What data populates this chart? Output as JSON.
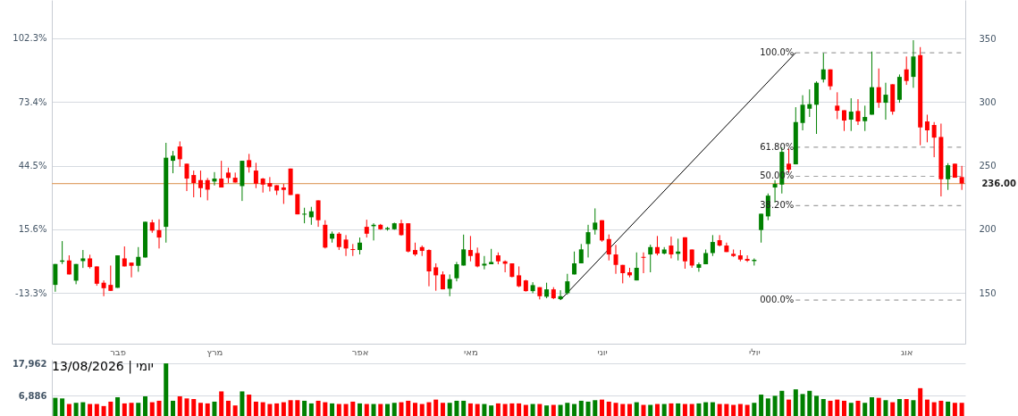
{
  "chart_data": [
    {
      "type": "candlestick",
      "categories": [
        null,
        null,
        null,
        null,
        null,
        null,
        null,
        null,
        null,
        "פבר",
        null,
        null,
        null,
        null,
        null,
        null,
        null,
        null,
        null,
        null,
        null,
        null,
        null,
        "מרץ",
        null,
        null,
        null,
        null,
        null,
        null,
        null,
        null,
        null,
        null,
        null,
        null,
        null,
        null,
        null,
        null,
        null,
        null,
        null,
        null,
        "אפר",
        null,
        null,
        null,
        null,
        null,
        null,
        null,
        null,
        null,
        null,
        null,
        null,
        null,
        null,
        null,
        "מאי",
        null,
        null,
        null,
        null,
        null,
        null,
        null,
        null,
        null,
        null,
        null,
        null,
        null,
        null,
        null,
        null,
        null,
        null,
        "יוני",
        null,
        null,
        null,
        null,
        null,
        null,
        null,
        null,
        null,
        null,
        null,
        null,
        null,
        null,
        null,
        null,
        null,
        null,
        null,
        null,
        null,
        "יולי",
        null,
        null,
        null,
        null,
        null,
        null,
        null,
        null,
        null,
        null,
        null,
        null,
        null,
        null,
        null,
        null,
        null,
        null,
        null,
        null,
        null,
        "אוג",
        null,
        null,
        null,
        null,
        null,
        null,
        null,
        null
      ],
      "ylim": [
        110.2,
        380.2
      ],
      "yticks": [
        150,
        200,
        250,
        300,
        350
      ],
      "y2lim": [
        -36.3,
        119.7
      ],
      "y2ticks": [
        {
          "value": -13.3,
          "label": "-13.3%"
        },
        {
          "value": 15.6,
          "label": "15.6%"
        },
        {
          "value": 44.5,
          "label": "44.5%"
        },
        {
          "value": 73.4,
          "label": "73.4%"
        },
        {
          "value": 102.3,
          "label": "102.3%"
        }
      ],
      "grid": "y",
      "ohlc": [
        [
          156.4,
          172.8,
          151.0,
          172.8
        ],
        [
          174.6,
          190.8,
          172.8,
          175.6
        ],
        [
          175.6,
          179.6,
          164.6,
          164.6
        ],
        [
          159.7,
          172.8,
          156.9,
          172.8
        ],
        [
          175.1,
          183.8,
          169.7,
          177.2
        ],
        [
          177.2,
          180.1,
          169.3,
          170.4
        ],
        [
          170.9,
          170.9,
          155.7,
          157.3
        ],
        [
          158.1,
          159.9,
          147.5,
          153.8
        ],
        [
          156.4,
          171.6,
          151.7,
          151.7
        ],
        [
          154.1,
          179.6,
          154.1,
          179.6
        ],
        [
          177.2,
          186.6,
          170.9,
          170.9
        ],
        [
          173.9,
          173.9,
          162.3,
          171.4
        ],
        [
          171.4,
          186.1,
          166.7,
          178.4
        ],
        [
          177.9,
          206.0,
          177.9,
          206.0
        ],
        [
          205.5,
          207.6,
          197.3,
          199.0
        ],
        [
          199.4,
          207.9,
          185.0,
          193.6
        ],
        [
          202.0,
          268.0,
          189.6,
          256.3
        ],
        [
          253.9,
          261.6,
          244.1,
          257.9
        ],
        [
          265.1,
          269.1,
          249.2,
          255.1
        ],
        [
          251.6,
          251.6,
          230.1,
          239.9
        ],
        [
          242.7,
          246.2,
          225.2,
          236.4
        ],
        [
          238.7,
          246.2,
          225.2,
          232.4
        ],
        [
          238.7,
          240.4,
          222.8,
          231.2
        ],
        [
          237.6,
          245.0,
          234.5,
          239.9
        ],
        [
          239.9,
          253.9,
          232.9,
          232.9
        ],
        [
          244.6,
          248.5,
          236.4,
          240.4
        ],
        [
          240.6,
          244.6,
          236.8,
          236.8
        ],
        [
          234.0,
          253.9,
          222.3,
          253.9
        ],
        [
          254.4,
          259.3,
          244.6,
          248.8
        ],
        [
          246.2,
          252.3,
          232.4,
          235.9
        ],
        [
          239.9,
          240.4,
          228.9,
          235.2
        ],
        [
          236.4,
          241.1,
          229.8,
          233.6
        ],
        [
          234.7,
          234.7,
          227.0,
          230.5
        ],
        [
          232.9,
          235.7,
          220.0,
          231.0
        ],
        [
          247.8,
          247.8,
          227.0,
          227.0
        ],
        [
          227.7,
          227.7,
          211.8,
          211.8
        ],
        [
          211.6,
          217.0,
          204.8,
          212.3
        ],
        [
          209.5,
          217.7,
          203.6,
          214.2
        ],
        [
          222.8,
          222.8,
          202.0,
          207.2
        ],
        [
          203.6,
          207.2,
          185.0,
          185.7
        ],
        [
          192.7,
          198.3,
          189.6,
          196.6
        ],
        [
          196.6,
          197.8,
          183.8,
          186.1
        ],
        [
          192.0,
          195.5,
          179.1,
          185.0
        ],
        [
          184.5,
          188.5,
          179.1,
          183.8
        ],
        [
          183.8,
          193.6,
          180.3,
          189.6
        ],
        [
          202.0,
          207.6,
          193.6,
          196.6
        ],
        [
          202.5,
          204.8,
          191.3,
          203.6
        ],
        [
          203.6,
          204.3,
          199.7,
          200.1
        ],
        [
          200.1,
          202.0,
          199.0,
          201.1
        ],
        [
          200.1,
          205.3,
          199.7,
          204.8
        ],
        [
          204.8,
          207.6,
          195.0,
          195.5
        ],
        [
          204.8,
          204.8,
          181.9,
          182.6
        ],
        [
          183.8,
          189.6,
          179.1,
          180.3
        ],
        [
          186.1,
          187.3,
          179.1,
          183.1
        ],
        [
          183.8,
          184.3,
          155.3,
          167.0
        ],
        [
          170.2,
          173.3,
          151.8,
          163.9
        ],
        [
          164.6,
          167.0,
          152.9,
          152.9
        ],
        [
          153.4,
          164.6,
          147.5,
          160.9
        ],
        [
          161.6,
          174.4,
          159.2,
          172.6
        ],
        [
          171.6,
          195.9,
          171.6,
          184.3
        ],
        [
          183.8,
          194.8,
          174.9,
          179.1
        ],
        [
          181.4,
          185.7,
          170.2,
          170.9
        ],
        [
          171.6,
          179.1,
          168.6,
          173.0
        ],
        [
          172.6,
          184.7,
          172.6,
          174.4
        ],
        [
          179.6,
          181.9,
          172.6,
          174.9
        ],
        [
          174.9,
          175.6,
          166.3,
          173.0
        ],
        [
          173.3,
          173.3,
          162.3,
          162.7
        ],
        [
          163.9,
          170.9,
          154.6,
          155.3
        ],
        [
          159.9,
          160.4,
          151.1,
          151.5
        ],
        [
          151.5,
          158.5,
          149.9,
          156.2
        ],
        [
          154.6,
          154.6,
          145.0,
          147.5
        ],
        [
          147.1,
          158.1,
          145.9,
          152.9
        ],
        [
          152.9,
          154.6,
          145.2,
          145.9
        ],
        [
          145.2,
          152.2,
          144.5,
          147.5
        ],
        [
          149.9,
          165.1,
          148.7,
          159.2
        ],
        [
          164.6,
          182.6,
          164.6,
          173.3
        ],
        [
          173.3,
          188.5,
          173.3,
          184.3
        ],
        [
          188.5,
          203.6,
          177.9,
          197.8
        ],
        [
          199.7,
          216.5,
          195.9,
          205.3
        ],
        [
          207.2,
          207.2,
          190.3,
          191.3
        ],
        [
          192.4,
          196.0,
          175.6,
          180.3
        ],
        [
          180.3,
          187.8,
          165.1,
          172.1
        ],
        [
          172.1,
          172.1,
          157.6,
          165.6
        ],
        [
          166.3,
          169.8,
          162.3,
          163.9
        ],
        [
          159.9,
          181.9,
          159.9,
          169.8
        ],
        [
          178.4,
          181.9,
          165.6,
          177.7
        ],
        [
          180.3,
          188.0,
          166.3,
          186.1
        ],
        [
          186.1,
          194.8,
          179.6,
          181.0
        ],
        [
          181.0,
          186.1,
          180.3,
          184.2
        ],
        [
          187.3,
          194.3,
          177.2,
          180.3
        ],
        [
          180.8,
          192.7,
          175.6,
          182.6
        ],
        [
          193.8,
          193.8,
          169.1,
          174.9
        ],
        [
          184.2,
          184.2,
          169.8,
          171.6
        ],
        [
          169.8,
          174.0,
          166.7,
          172.6
        ],
        [
          172.6,
          184.2,
          172.6,
          181.4
        ],
        [
          181.4,
          195.5,
          179.1,
          190.1
        ],
        [
          191.5,
          195.5,
          186.6,
          187.3
        ],
        [
          187.3,
          189.6,
          182.2,
          182.2
        ],
        [
          180.8,
          184.2,
          178.4,
          179.1
        ],
        [
          179.6,
          183.8,
          174.9,
          176.3
        ],
        [
          176.8,
          179.6,
          174.4,
          175.4
        ],
        [
          175.1,
          177.2,
          171.6,
          176.1
        ],
        [
          199.5,
          212.3,
          189.6,
          212.3
        ],
        [
          210.2,
          228.2,
          207.2,
          226.5
        ],
        [
          232.9,
          238.7,
          221.2,
          235.7
        ],
        [
          235.2,
          264.4,
          228.2,
          260.9
        ],
        [
          251.6,
          263.3,
          244.6,
          246.9
        ],
        [
          251.1,
          296.0,
          251.1,
          284.3
        ],
        [
          283.6,
          305.4,
          277.8,
          297.9
        ],
        [
          294.8,
          310.0,
          288.3,
          298.4
        ],
        [
          297.9,
          316.3,
          275.0,
          315.2
        ],
        [
          317.7,
          338.5,
          315.4,
          325.7
        ],
        [
          325.7,
          325.7,
          309.6,
          312.4
        ],
        [
          297.2,
          307.7,
          286.6,
          293.2
        ],
        [
          293.6,
          293.6,
          277.3,
          285.5
        ],
        [
          286.2,
          303.0,
          277.3,
          292.5
        ],
        [
          293.0,
          302.3,
          282.0,
          284.8
        ],
        [
          285.0,
          297.2,
          277.3,
          288.3
        ],
        [
          290.1,
          339.7,
          290.1,
          311.7
        ],
        [
          311.7,
          326.4,
          295.5,
          299.5
        ],
        [
          299.5,
          315.2,
          286.2,
          305.8
        ],
        [
          314.0,
          314.0,
          290.1,
          292.5
        ],
        [
          301.8,
          321.7,
          299.5,
          319.8
        ],
        [
          325.7,
          335.8,
          313.5,
          316.6
        ],
        [
          319.8,
          348.6,
          311.2,
          335.8
        ],
        [
          336.9,
          343.2,
          266.1,
          280.1
        ],
        [
          284.8,
          290.1,
          268.4,
          277.8
        ],
        [
          282.0,
          284.3,
          256.7,
          272.1
        ],
        [
          272.6,
          283.1,
          225.9,
          239.4
        ],
        [
          239.4,
          252.0,
          231.0,
          250.4
        ],
        [
          251.6,
          251.6,
          240.6,
          240.6
        ],
        [
          241.1,
          249.9,
          231.0,
          236.0
        ]
      ],
      "colors": [
        "#008000",
        "#008000",
        "#ff0000",
        "#008000",
        "#008000",
        "#ff0000",
        "#ff0000",
        "#ff0000",
        "#ff0000",
        "#008000",
        "#ff0000",
        "#ff0000",
        "#008000",
        "#008000",
        "#ff0000",
        "#ff0000",
        "#008000",
        "#008000",
        "#ff0000",
        "#ff0000",
        "#ff0000",
        "#ff0000",
        "#ff0000",
        "#008000",
        "#ff0000",
        "#ff0000",
        "#ff0000",
        "#008000",
        "#ff0000",
        "#ff0000",
        "#ff0000",
        "#ff0000",
        "#ff0000",
        "#ff0000",
        "#ff0000",
        "#ff0000",
        "#008000",
        "#008000",
        "#ff0000",
        "#ff0000",
        "#008000",
        "#ff0000",
        "#ff0000",
        "#ff0000",
        "#008000",
        "#ff0000",
        "#008000",
        "#ff0000",
        "#008000",
        "#008000",
        "#ff0000",
        "#ff0000",
        "#ff0000",
        "#ff0000",
        "#ff0000",
        "#ff0000",
        "#ff0000",
        "#008000",
        "#008000",
        "#008000",
        "#ff0000",
        "#ff0000",
        "#008000",
        "#008000",
        "#ff0000",
        "#ff0000",
        "#ff0000",
        "#ff0000",
        "#ff0000",
        "#008000",
        "#ff0000",
        "#008000",
        "#ff0000",
        "#008000",
        "#008000",
        "#008000",
        "#008000",
        "#008000",
        "#008000",
        "#ff0000",
        "#ff0000",
        "#ff0000",
        "#ff0000",
        "#ff0000",
        "#008000",
        "#ff0000",
        "#008000",
        "#ff0000",
        "#008000",
        "#ff0000",
        "#008000",
        "#ff0000",
        "#ff0000",
        "#008000",
        "#008000",
        "#008000",
        "#ff0000",
        "#ff0000",
        "#ff0000",
        "#ff0000",
        "#ff0000",
        "#008000",
        "#008000",
        "#008000",
        "#008000",
        "#008000",
        "#ff0000",
        "#008000",
        "#008000",
        "#008000",
        "#008000",
        "#008000",
        "#ff0000",
        "#ff0000",
        "#ff0000",
        "#008000",
        "#ff0000",
        "#008000",
        "#008000",
        "#ff0000",
        "#008000",
        "#ff0000",
        "#008000",
        "#ff0000",
        "#008000",
        "#ff0000",
        "#ff0000",
        "#ff0000",
        "#ff0000",
        "#008000",
        "#ff0000",
        "#ff0000"
      ],
      "series": [
        {
          "type": "line",
          "color": "#000000",
          "values": [
            null,
            null,
            null,
            null,
            null,
            null,
            null,
            null,
            null,
            null,
            null,
            null,
            null,
            null,
            null,
            null,
            null,
            null,
            null,
            null,
            null,
            null,
            null,
            null,
            null,
            null,
            null,
            null,
            null,
            null,
            null,
            null,
            null,
            null,
            null,
            null,
            null,
            null,
            null,
            null,
            null,
            null,
            null,
            null,
            null,
            null,
            null,
            null,
            null,
            null,
            null,
            null,
            null,
            null,
            null,
            null,
            null,
            null,
            null,
            null,
            null,
            null,
            null,
            null,
            null,
            null,
            null,
            null,
            null,
            null,
            null,
            null,
            null,
            144.5,
            null,
            null,
            null,
            null,
            null,
            null,
            null,
            null,
            null,
            null,
            null,
            null,
            null,
            null,
            null,
            null,
            null,
            null,
            null,
            null,
            null,
            null,
            null,
            null,
            null,
            null,
            null,
            null,
            null,
            null,
            null,
            null,
            null,
            338.8,
            null,
            null,
            null,
            null,
            null,
            null,
            null,
            null,
            null,
            null,
            null,
            null,
            null,
            null,
            null,
            null,
            null,
            null,
            null,
            null,
            null,
            null,
            null,
            null
          ]
        }
      ],
      "ref_lines": [
        {
          "axis": "y",
          "value": 236,
          "label": "236.00",
          "color": "#e0a46c"
        },
        {
          "axis": "y",
          "value": 338.8,
          "line_style": "dashed",
          "color": "#a0a0a0"
        },
        {
          "axis": "y",
          "value": 264.6,
          "line_style": "dashed",
          "color": "#a0a0a0"
        },
        {
          "axis": "y",
          "value": 241.7,
          "line_style": "dashed",
          "color": "#a0a0a0"
        },
        {
          "axis": "y",
          "value": 218.7,
          "line_style": "dashed",
          "color": "#a0a0a0"
        },
        {
          "axis": "y",
          "value": 144.5,
          "line_style": "dashed",
          "color": "#a0a0a0"
        }
      ],
      "annotations": [
        "100.0%",
        "61.80%",
        "50.00%",
        "38.20%",
        "000.0%"
      ]
    },
    {
      "type": "bar",
      "title": "יומי | 13/08/2026",
      "categories": [
        null,
        null,
        null,
        null,
        null,
        null,
        null,
        null,
        null,
        null,
        null,
        null,
        null,
        null,
        null,
        null,
        null,
        null,
        null,
        null,
        null,
        null,
        null,
        null,
        null,
        null,
        null,
        null,
        null,
        null,
        null,
        null,
        null,
        null,
        null,
        null,
        null,
        null,
        null,
        null,
        null,
        null,
        null,
        null,
        null,
        null,
        null,
        null,
        null,
        null,
        null,
        null,
        null,
        null,
        null,
        null,
        null,
        null,
        null,
        null,
        null,
        null,
        null,
        null,
        null,
        null,
        null,
        null,
        null,
        null,
        null,
        null,
        null,
        null,
        null,
        null,
        null,
        null,
        null,
        null,
        null,
        null,
        null,
        null,
        null,
        null,
        null,
        null,
        null,
        null,
        null,
        null,
        null,
        null,
        null,
        null,
        null,
        null,
        null,
        null,
        null,
        null,
        null,
        null,
        null,
        null,
        null,
        null,
        null,
        null,
        null,
        null,
        null,
        null,
        null,
        null,
        null,
        null,
        null,
        null,
        null,
        null,
        null,
        null,
        null,
        null,
        null,
        null,
        null,
        null,
        null,
        null
      ],
      "values": [
        6200,
        6000,
        4100,
        4500,
        4700,
        4100,
        4100,
        3400,
        4900,
        6400,
        4300,
        4500,
        4500,
        6700,
        4700,
        5200,
        17962,
        5200,
        6700,
        6000,
        5800,
        4500,
        4300,
        4900,
        8400,
        5200,
        3600,
        8400,
        7300,
        4900,
        4700,
        4100,
        4300,
        4700,
        5400,
        5400,
        5200,
        4300,
        5200,
        4700,
        4300,
        4100,
        4100,
        4900,
        4300,
        4100,
        4100,
        4100,
        4100,
        4500,
        4700,
        5200,
        4500,
        4100,
        4700,
        5600,
        4500,
        4500,
        5200,
        5200,
        4300,
        4100,
        4100,
        3600,
        4300,
        4100,
        4300,
        4300,
        3800,
        4100,
        4100,
        3600,
        3800,
        3800,
        4500,
        4100,
        5200,
        4900,
        5400,
        5600,
        4900,
        4500,
        4100,
        4100,
        4700,
        3800,
        3800,
        4100,
        4100,
        4300,
        4300,
        4100,
        4100,
        4300,
        4700,
        4700,
        4100,
        4100,
        3800,
        4100,
        3800,
        4500,
        7300,
        6000,
        6900,
        8600,
        5600,
        9100,
        7500,
        8600,
        6900,
        5800,
        5200,
        5600,
        5200,
        4500,
        5200,
        4500,
        6400,
        6200,
        5400,
        4700,
        5800,
        5800,
        5400,
        9500,
        5600,
        4700,
        5200,
        4900,
        4500,
        4500
      ],
      "colors": [
        "#008000",
        "#008000",
        "#ff0000",
        "#008000",
        "#008000",
        "#ff0000",
        "#ff0000",
        "#ff0000",
        "#ff0000",
        "#008000",
        "#ff0000",
        "#ff0000",
        "#008000",
        "#008000",
        "#ff0000",
        "#ff0000",
        "#008000",
        "#008000",
        "#ff0000",
        "#ff0000",
        "#ff0000",
        "#ff0000",
        "#ff0000",
        "#008000",
        "#ff0000",
        "#ff0000",
        "#ff0000",
        "#008000",
        "#ff0000",
        "#ff0000",
        "#ff0000",
        "#ff0000",
        "#ff0000",
        "#ff0000",
        "#ff0000",
        "#ff0000",
        "#008000",
        "#008000",
        "#ff0000",
        "#ff0000",
        "#008000",
        "#ff0000",
        "#ff0000",
        "#ff0000",
        "#008000",
        "#ff0000",
        "#008000",
        "#ff0000",
        "#008000",
        "#008000",
        "#ff0000",
        "#ff0000",
        "#ff0000",
        "#ff0000",
        "#ff0000",
        "#ff0000",
        "#ff0000",
        "#008000",
        "#008000",
        "#008000",
        "#ff0000",
        "#ff0000",
        "#008000",
        "#008000",
        "#ff0000",
        "#ff0000",
        "#ff0000",
        "#ff0000",
        "#ff0000",
        "#008000",
        "#ff0000",
        "#008000",
        "#ff0000",
        "#008000",
        "#008000",
        "#008000",
        "#008000",
        "#008000",
        "#008000",
        "#ff0000",
        "#ff0000",
        "#ff0000",
        "#ff0000",
        "#ff0000",
        "#008000",
        "#ff0000",
        "#008000",
        "#ff0000",
        "#008000",
        "#ff0000",
        "#008000",
        "#ff0000",
        "#ff0000",
        "#008000",
        "#008000",
        "#008000",
        "#ff0000",
        "#ff0000",
        "#ff0000",
        "#ff0000",
        "#ff0000",
        "#008000",
        "#008000",
        "#008000",
        "#008000",
        "#008000",
        "#ff0000",
        "#008000",
        "#008000",
        "#008000",
        "#008000",
        "#008000",
        "#ff0000",
        "#ff0000",
        "#ff0000",
        "#008000",
        "#ff0000",
        "#008000",
        "#008000",
        "#ff0000",
        "#008000",
        "#ff0000",
        "#008000",
        "#ff0000",
        "#008000",
        "#ff0000",
        "#ff0000",
        "#ff0000",
        "#ff0000",
        "#008000",
        "#ff0000",
        "#ff0000"
      ],
      "ylim": [
        0,
        19200
      ],
      "yticks": [
        {
          "value": 6886,
          "label": "6,886"
        },
        {
          "value": 17962,
          "label": "17,962"
        }
      ],
      "tick_labels": "y",
      "grid": "y"
    }
  ]
}
